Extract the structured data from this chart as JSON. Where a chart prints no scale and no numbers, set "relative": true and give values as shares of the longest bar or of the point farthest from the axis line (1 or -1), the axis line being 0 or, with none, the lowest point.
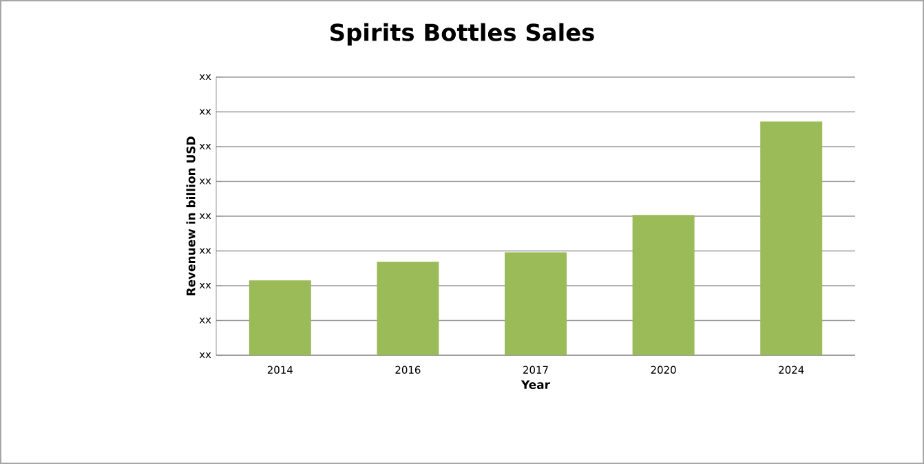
{
  "chart_data": {
    "type": "bar",
    "title": "Spirits Bottles Sales",
    "xlabel": "Year",
    "ylabel": "Revenuew in billion USD",
    "categories": [
      "2014",
      "2016",
      "2017",
      "2020",
      "2024"
    ],
    "values": [
      0.32,
      0.4,
      0.44,
      0.6,
      1
    ],
    "color": "#9bbb59",
    "relative": true,
    "grid": "y",
    "annotations": [
      "xx",
      "xx",
      "xx",
      "xx",
      "xx",
      "xx",
      "xx",
      "xx",
      "xx"
    ]
  }
}
